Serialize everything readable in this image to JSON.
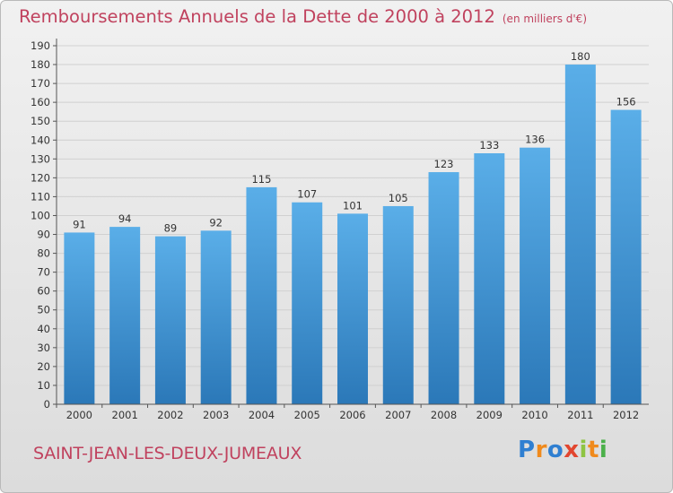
{
  "title": "Remboursements Annuels de la Dette de 2000 à 2012",
  "unit": "(en milliers d'€)",
  "commune": "SAINT-JEAN-LES-DEUX-JUMEAUX",
  "logo": {
    "text": "Proxiti",
    "letter_colors": [
      "#2f7fd1",
      "#f08a1c",
      "#2f7fd1",
      "#e2462f",
      "#8ec442",
      "#f08a1c",
      "#4bb04a"
    ]
  },
  "colors": {
    "title": "#c0425e",
    "bar_top": "#5aaee8",
    "bar_bottom": "#2b78b8",
    "grid": "#d0d0d0",
    "axis": "#555555"
  },
  "chart_data": {
    "type": "bar",
    "categories": [
      "2000",
      "2001",
      "2002",
      "2003",
      "2004",
      "2005",
      "2006",
      "2007",
      "2008",
      "2009",
      "2010",
      "2011",
      "2012"
    ],
    "values": [
      91,
      94,
      89,
      92,
      115,
      107,
      101,
      105,
      123,
      133,
      136,
      180,
      156
    ],
    "ylim": [
      0,
      190
    ],
    "yticks": [
      0,
      10,
      20,
      30,
      40,
      50,
      60,
      70,
      80,
      90,
      100,
      110,
      120,
      130,
      140,
      150,
      160,
      170,
      180,
      190
    ],
    "grid": true
  }
}
